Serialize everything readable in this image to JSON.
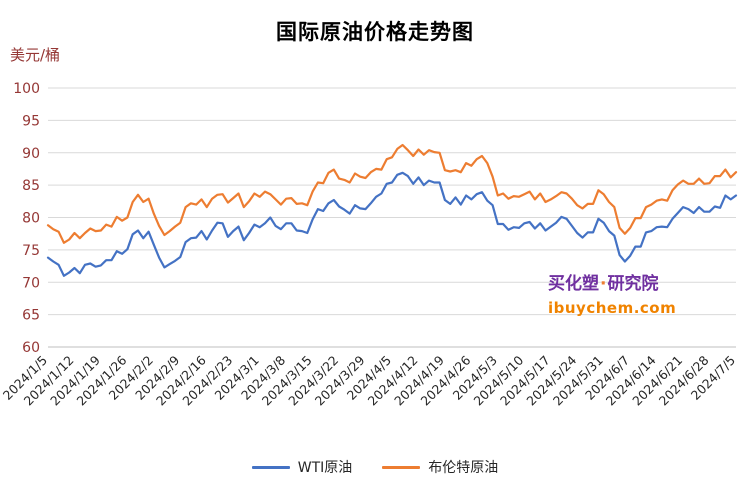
{
  "watermark": {
    "brand": "买化塑",
    "dot": "·",
    "suffix": "研究院",
    "url": "ibuychem.com"
  },
  "legend": [
    {
      "label": "WTI原油",
      "color": "#4472C4"
    },
    {
      "label": "布伦特原油",
      "color": "#ED7D31"
    }
  ],
  "chart_data": {
    "type": "line",
    "title": "国际原油价格走势图",
    "ylabel": "美元/桶",
    "xlabel": "",
    "ylim": [
      60,
      100
    ],
    "ytick_step": 5,
    "grid": "horizontal",
    "legend_position": "bottom",
    "x_tick_labels": [
      "2024/1/5",
      "2024/1/12",
      "2024/1/19",
      "2024/1/26",
      "2024/2/2",
      "2024/2/9",
      "2024/2/16",
      "2024/2/23",
      "2024/3/1",
      "2024/3/8",
      "2024/3/15",
      "2024/3/22",
      "2024/3/29",
      "2024/4/5",
      "2024/4/12",
      "2024/4/19",
      "2024/4/26",
      "2024/5/3",
      "2024/5/10",
      "2024/5/17",
      "2024/5/24",
      "2024/5/31",
      "2024/6/7",
      "2024/6/14",
      "2024/6/21",
      "2024/6/28",
      "2024/7/5"
    ],
    "series": [
      {
        "name": "WTI原油",
        "color": "#4472C4",
        "values": [
          73.8,
          73.2,
          72.7,
          71.0,
          71.5,
          72.2,
          71.4,
          72.7,
          72.9,
          72.4,
          72.6,
          73.4,
          73.4,
          74.8,
          74.4,
          75.1,
          77.4,
          78.0,
          76.8,
          77.8,
          75.8,
          73.8,
          72.3,
          72.8,
          73.3,
          73.9,
          76.2,
          76.8,
          76.9,
          77.9,
          76.6,
          78.0,
          79.2,
          79.1,
          77.0,
          77.9,
          78.6,
          76.5,
          77.6,
          78.9,
          78.5,
          79.1,
          80.0,
          78.7,
          78.2,
          79.1,
          79.1,
          78.0,
          77.9,
          77.6,
          79.7,
          81.3,
          81.0,
          82.2,
          82.7,
          81.7,
          81.2,
          80.6,
          81.9,
          81.4,
          81.3,
          82.2,
          83.2,
          83.7,
          85.2,
          85.4,
          86.6,
          86.9,
          86.4,
          85.2,
          86.2,
          85.0,
          85.7,
          85.4,
          85.4,
          82.7,
          82.1,
          83.1,
          82.0,
          83.4,
          82.8,
          83.6,
          83.9,
          82.6,
          81.9,
          79.0,
          79.0,
          78.1,
          78.5,
          78.4,
          79.1,
          79.3,
          78.3,
          79.1,
          78.0,
          78.6,
          79.2,
          80.1,
          79.8,
          78.7,
          77.6,
          76.9,
          77.7,
          77.7,
          79.8,
          79.2,
          77.9,
          77.2,
          74.2,
          73.2,
          74.1,
          75.5,
          75.5,
          77.7,
          77.9,
          78.5,
          78.6,
          78.5,
          79.8,
          80.7,
          81.6,
          81.3,
          80.7,
          81.6,
          80.9,
          80.9,
          81.7,
          81.5,
          83.4,
          82.8,
          83.4
        ]
      },
      {
        "name": "布伦特原油",
        "color": "#ED7D31",
        "values": [
          78.8,
          78.2,
          77.8,
          76.1,
          76.6,
          77.6,
          76.8,
          77.6,
          78.3,
          77.9,
          78.0,
          78.9,
          78.6,
          80.1,
          79.5,
          80.0,
          82.4,
          83.5,
          82.4,
          82.9,
          80.6,
          78.7,
          77.3,
          77.9,
          78.6,
          79.2,
          81.6,
          82.2,
          82.0,
          82.8,
          81.6,
          82.9,
          83.5,
          83.6,
          82.3,
          83.0,
          83.7,
          81.6,
          82.5,
          83.7,
          83.2,
          84.0,
          83.6,
          82.8,
          82.0,
          82.9,
          83.0,
          82.1,
          82.2,
          81.9,
          84.0,
          85.4,
          85.3,
          86.9,
          87.4,
          86.0,
          85.8,
          85.4,
          86.8,
          86.3,
          86.1,
          87.0,
          87.5,
          87.4,
          89.0,
          89.3,
          90.6,
          91.2,
          90.4,
          89.5,
          90.5,
          89.7,
          90.4,
          90.1,
          90.0,
          87.3,
          87.1,
          87.3,
          87.0,
          88.4,
          88.0,
          89.0,
          89.5,
          88.4,
          86.3,
          83.4,
          83.7,
          82.9,
          83.3,
          83.2,
          83.6,
          84.0,
          82.8,
          83.7,
          82.4,
          82.8,
          83.3,
          83.9,
          83.7,
          82.9,
          81.9,
          81.4,
          82.1,
          82.1,
          84.2,
          83.6,
          82.4,
          81.6,
          78.4,
          77.5,
          78.4,
          79.9,
          79.9,
          81.6,
          82.0,
          82.6,
          82.8,
          82.6,
          84.2,
          85.1,
          85.7,
          85.2,
          85.2,
          86.0,
          85.2,
          85.3,
          86.4,
          86.4,
          87.4,
          86.2,
          87.0
        ]
      }
    ],
    "colors": {
      "grid": "#D9D9D9",
      "axis": "#BFBFBF",
      "y_tick_label": "#953735",
      "x_tick_label": "#262626"
    }
  }
}
